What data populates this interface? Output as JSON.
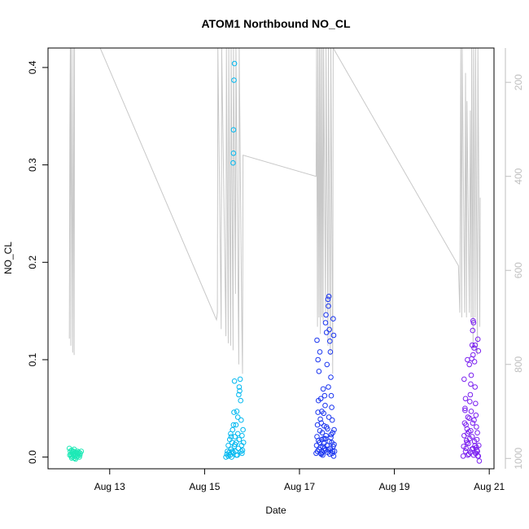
{
  "chart_data": {
    "type": "scatter",
    "title": "ATOM1 Northbound NO_CL",
    "xlabel": "Date",
    "ylabel": "NO_CL",
    "x_unit": "days (August)",
    "xlim": [
      11.7,
      21.1
    ],
    "ylim": [
      -0.012,
      0.42
    ],
    "x_ticks": [
      {
        "value": 13,
        "label": "Aug 13"
      },
      {
        "value": 15,
        "label": "Aug 15"
      },
      {
        "value": 17,
        "label": "Aug 17"
      },
      {
        "value": 19,
        "label": "Aug 19"
      },
      {
        "value": 21,
        "label": "Aug 21"
      }
    ],
    "y_ticks": [
      0.0,
      0.1,
      0.2,
      0.3,
      0.4
    ],
    "y_tick_labels": [
      "0.0",
      "0.1",
      "0.2",
      "0.3",
      "0.4"
    ],
    "secondary_axis": {
      "side": "right",
      "reversed": true,
      "lim": [
        127,
        1022
      ],
      "ticks": [
        200,
        400,
        600,
        800,
        1000
      ],
      "color": "#bfbfbf"
    },
    "grid": false,
    "legend": "none",
    "series": [
      {
        "color": "#1de9b6",
        "points": [
          [
            12.15,
            0.009
          ],
          [
            12.17,
            0.006
          ],
          [
            12.18,
            0.003
          ],
          [
            12.19,
            0.001
          ],
          [
            12.2,
            0.007
          ],
          [
            12.21,
            0.004
          ],
          [
            12.22,
            0.0
          ],
          [
            12.23,
            0.002
          ],
          [
            12.24,
            0.006
          ],
          [
            12.25,
            0.003
          ],
          [
            12.26,
            -0.001
          ],
          [
            12.27,
            0.001
          ],
          [
            12.28,
            0.005
          ],
          [
            12.29,
            0.002
          ],
          [
            12.3,
            0.0
          ],
          [
            12.31,
            0.004
          ],
          [
            12.32,
            0.006
          ],
          [
            12.33,
            0.001
          ],
          [
            12.34,
            0.003
          ],
          [
            12.35,
            0.005
          ],
          [
            12.36,
            0.0
          ],
          [
            12.37,
            0.002
          ],
          [
            12.38,
            0.004
          ],
          [
            12.4,
            0.006
          ],
          [
            12.16,
            0.002
          ],
          [
            12.22,
            0.005
          ],
          [
            12.28,
            -0.002
          ],
          [
            12.33,
            0.004
          ],
          [
            12.25,
            0.008
          ],
          [
            12.2,
            -0.001
          ]
        ]
      },
      {
        "color": "#00b8f0",
        "points": [
          [
            15.45,
            0.0
          ],
          [
            15.47,
            0.003
          ],
          [
            15.48,
            0.006
          ],
          [
            15.5,
            0.001
          ],
          [
            15.5,
            0.012
          ],
          [
            15.52,
            0.005
          ],
          [
            15.53,
            0.018
          ],
          [
            15.54,
            0.002
          ],
          [
            15.55,
            0.024
          ],
          [
            15.56,
            0.008
          ],
          [
            15.57,
            0.0
          ],
          [
            15.58,
            0.015
          ],
          [
            15.59,
            0.028
          ],
          [
            15.6,
            0.005
          ],
          [
            15.6,
            0.302
          ],
          [
            15.61,
            0.312
          ],
          [
            15.61,
            0.336
          ],
          [
            15.62,
            0.387
          ],
          [
            15.63,
            0.404
          ],
          [
            15.61,
            0.033
          ],
          [
            15.62,
            0.046
          ],
          [
            15.63,
            0.078
          ],
          [
            15.63,
            0.011
          ],
          [
            15.64,
            0.021
          ],
          [
            15.65,
            0.006
          ],
          [
            15.66,
            0.033
          ],
          [
            15.67,
            0.015
          ],
          [
            15.68,
            0.047
          ],
          [
            15.69,
            0.002
          ],
          [
            15.7,
            0.024
          ],
          [
            15.71,
            0.009
          ],
          [
            15.72,
            0.064
          ],
          [
            15.73,
            0.072
          ],
          [
            15.74,
            0.068
          ],
          [
            15.75,
            0.08
          ],
          [
            15.76,
            0.058
          ],
          [
            15.77,
            0.038
          ],
          [
            15.78,
            0.012
          ],
          [
            15.79,
            0.004
          ],
          [
            15.8,
            0.007
          ],
          [
            15.81,
            0.028
          ],
          [
            15.82,
            0.015
          ],
          [
            15.56,
            0.021
          ],
          [
            15.58,
            0.006
          ],
          [
            15.64,
            0.013
          ],
          [
            15.67,
            0.002
          ],
          [
            15.7,
            0.041
          ],
          [
            15.73,
            0.018
          ],
          [
            15.77,
            0.006
          ],
          [
            15.79,
            0.022
          ]
        ]
      },
      {
        "color": "#1a35f0",
        "points": [
          [
            17.35,
            0.004
          ],
          [
            17.36,
            0.012
          ],
          [
            17.37,
            0.021
          ],
          [
            17.38,
            0.033
          ],
          [
            17.39,
            0.046
          ],
          [
            17.4,
            0.058
          ],
          [
            17.41,
            0.008
          ],
          [
            17.42,
            0.015
          ],
          [
            17.43,
            0.027
          ],
          [
            17.44,
            0.039
          ],
          [
            17.45,
            0.06
          ],
          [
            17.46,
            0.003
          ],
          [
            17.47,
            0.018
          ],
          [
            17.48,
            0.025
          ],
          [
            17.49,
            0.011
          ],
          [
            17.5,
            0.07
          ],
          [
            17.51,
            0.045
          ],
          [
            17.52,
            0.032
          ],
          [
            17.53,
            0.009
          ],
          [
            17.54,
            0.019
          ],
          [
            17.55,
            0.138
          ],
          [
            17.56,
            0.146
          ],
          [
            17.57,
            0.128
          ],
          [
            17.58,
            0.012
          ],
          [
            17.59,
            0.029
          ],
          [
            17.6,
            0.162
          ],
          [
            17.61,
            0.155
          ],
          [
            17.62,
            0.165
          ],
          [
            17.63,
            0.131
          ],
          [
            17.64,
            0.119
          ],
          [
            17.65,
            0.108
          ],
          [
            17.66,
            0.082
          ],
          [
            17.67,
            0.063
          ],
          [
            17.68,
            0.051
          ],
          [
            17.69,
            0.038
          ],
          [
            17.7,
            0.025
          ],
          [
            17.71,
            0.142
          ],
          [
            17.72,
            0.125
          ],
          [
            17.73,
            0.013
          ],
          [
            17.74,
            0.006
          ],
          [
            17.37,
            0.12
          ],
          [
            17.39,
            0.1
          ],
          [
            17.41,
            0.088
          ],
          [
            17.43,
            0.108
          ],
          [
            17.45,
            0.004
          ],
          [
            17.47,
            0.047
          ],
          [
            17.49,
            0.002
          ],
          [
            17.51,
            0.019
          ],
          [
            17.53,
            0.063
          ],
          [
            17.55,
            0.007
          ],
          [
            17.57,
            0.031
          ],
          [
            17.59,
            0.005
          ],
          [
            17.61,
            0.072
          ],
          [
            17.63,
            0.016
          ],
          [
            17.65,
            0.009
          ],
          [
            17.67,
            0.023
          ],
          [
            17.69,
            0.004
          ],
          [
            17.71,
            0.011
          ],
          [
            17.73,
            0.028
          ],
          [
            17.4,
            0.017
          ],
          [
            17.44,
            0.01
          ],
          [
            17.48,
            0.005
          ],
          [
            17.52,
            0.014
          ],
          [
            17.56,
            0.022
          ],
          [
            17.6,
            0.008
          ],
          [
            17.64,
            0.003
          ],
          [
            17.68,
            0.015
          ],
          [
            17.72,
            0.001
          ],
          [
            17.38,
            0.006
          ],
          [
            17.46,
            0.035
          ],
          [
            17.54,
            0.053
          ],
          [
            17.62,
            0.041
          ],
          [
            17.7,
            0.006
          ],
          [
            17.58,
            0.095
          ],
          [
            17.66,
            0.02
          ]
        ]
      },
      {
        "color": "#7a1ff0",
        "points": [
          [
            20.45,
            0.001
          ],
          [
            20.46,
            0.011
          ],
          [
            20.47,
            0.022
          ],
          [
            20.48,
            0.035
          ],
          [
            20.49,
            0.048
          ],
          [
            20.5,
            0.06
          ],
          [
            20.51,
            0.009
          ],
          [
            20.52,
            0.017
          ],
          [
            20.53,
            0.029
          ],
          [
            20.54,
            0.1
          ],
          [
            20.55,
            0.002
          ],
          [
            20.56,
            0.014
          ],
          [
            20.57,
            0.026
          ],
          [
            20.58,
            0.04
          ],
          [
            20.59,
            0.057
          ],
          [
            20.6,
            0.005
          ],
          [
            20.61,
            0.075
          ],
          [
            20.62,
            0.084
          ],
          [
            20.63,
            0.101
          ],
          [
            20.64,
            0.115
          ],
          [
            20.65,
            0.13
          ],
          [
            20.66,
            0.14
          ],
          [
            20.67,
            0.138
          ],
          [
            20.68,
            0.112
          ],
          [
            20.69,
            0.098
          ],
          [
            20.7,
            0.072
          ],
          [
            20.71,
            0.055
          ],
          [
            20.72,
            0.043
          ],
          [
            20.73,
            0.031
          ],
          [
            20.74,
            0.018
          ],
          [
            20.75,
            0.006
          ],
          [
            20.76,
            0.121
          ],
          [
            20.77,
            0.109
          ],
          [
            20.78,
            0.012
          ],
          [
            20.79,
            -0.004
          ],
          [
            20.47,
            0.08
          ],
          [
            20.49,
            0.05
          ],
          [
            20.51,
            0.033
          ],
          [
            20.53,
            0.015
          ],
          [
            20.55,
            0.041
          ],
          [
            20.57,
            0.003
          ],
          [
            20.59,
            0.019
          ],
          [
            20.61,
            0.027
          ],
          [
            20.63,
            0.008
          ],
          [
            20.65,
            0.035
          ],
          [
            20.67,
            0.002
          ],
          [
            20.69,
            0.016
          ],
          [
            20.71,
            0.004
          ],
          [
            20.73,
            0.01
          ],
          [
            20.75,
            0.025
          ],
          [
            20.77,
            0.001
          ],
          [
            20.6,
            0.064
          ],
          [
            20.62,
            0.047
          ],
          [
            20.64,
            0.021
          ],
          [
            20.66,
            0.009
          ],
          [
            20.68,
            0.038
          ],
          [
            20.7,
            0.012
          ],
          [
            20.72,
            0.004
          ],
          [
            20.74,
            0.007
          ],
          [
            20.76,
            0.001
          ],
          [
            20.58,
            0.095
          ],
          [
            20.66,
            0.105
          ],
          [
            20.7,
            0.115
          ],
          [
            20.5,
            0.006
          ],
          [
            20.54,
            0.024
          ]
        ]
      }
    ],
    "secondary_series": {
      "color": "#c8c8c8",
      "type": "line",
      "points": [
        [
          12.15,
          745
        ],
        [
          12.16,
          300
        ],
        [
          12.17,
          127
        ],
        [
          12.18,
          760
        ],
        [
          12.19,
          127
        ],
        [
          12.22,
          775
        ],
        [
          12.23,
          127
        ],
        [
          12.25,
          780
        ],
        [
          12.26,
          127
        ],
        [
          12.8,
          127
        ],
        [
          15.25,
          705
        ],
        [
          15.27,
          690
        ],
        [
          15.28,
          127
        ],
        [
          15.35,
          725
        ],
        [
          15.36,
          127
        ],
        [
          15.45,
          740
        ],
        [
          15.46,
          127
        ],
        [
          15.5,
          755
        ],
        [
          15.51,
          127
        ],
        [
          15.55,
          760
        ],
        [
          15.56,
          127
        ],
        [
          15.6,
          770
        ],
        [
          15.61,
          127
        ],
        [
          15.65,
          650
        ],
        [
          15.66,
          127
        ],
        [
          15.72,
          800
        ],
        [
          15.73,
          127
        ],
        [
          15.78,
          680
        ],
        [
          15.8,
          820
        ],
        [
          15.81,
          355
        ],
        [
          17.35,
          400
        ],
        [
          17.36,
          127
        ],
        [
          17.38,
          720
        ],
        [
          17.39,
          127
        ],
        [
          17.41,
          700
        ],
        [
          17.42,
          127
        ],
        [
          17.44,
          735
        ],
        [
          17.45,
          127
        ],
        [
          17.47,
          700
        ],
        [
          17.48,
          127
        ],
        [
          17.5,
          710
        ],
        [
          17.51,
          127
        ],
        [
          17.55,
          690
        ],
        [
          17.56,
          127
        ],
        [
          17.6,
          760
        ],
        [
          17.61,
          127
        ],
        [
          17.65,
          780
        ],
        [
          17.66,
          127
        ],
        [
          17.7,
          820
        ],
        [
          17.71,
          127
        ],
        [
          20.35,
          590
        ],
        [
          20.38,
          690
        ],
        [
          20.4,
          127
        ],
        [
          20.42,
          700
        ],
        [
          20.43,
          127
        ],
        [
          20.48,
          690
        ],
        [
          20.5,
          180
        ],
        [
          20.52,
          700
        ],
        [
          20.53,
          240
        ],
        [
          20.58,
          690
        ],
        [
          20.6,
          260
        ],
        [
          20.62,
          700
        ],
        [
          20.63,
          127
        ],
        [
          20.66,
          770
        ],
        [
          20.67,
          127
        ],
        [
          20.7,
          700
        ],
        [
          20.71,
          127
        ],
        [
          20.75,
          780
        ],
        [
          20.76,
          127
        ],
        [
          20.8,
          720
        ],
        [
          20.81,
          445
        ]
      ]
    }
  }
}
